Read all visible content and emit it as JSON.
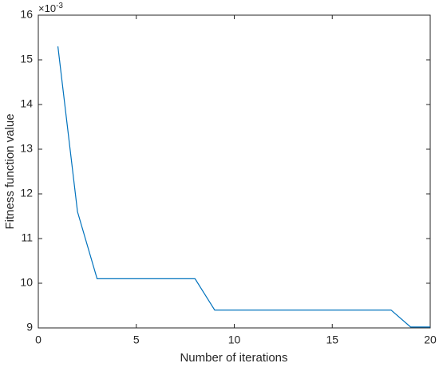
{
  "chart_data": {
    "type": "line",
    "x_label": "Number of iterations",
    "y_label": "Fitness function value",
    "y_multiplier_base": "×10",
    "y_multiplier_exp": "-3",
    "x": [
      1,
      2,
      3,
      4,
      5,
      6,
      7,
      8,
      9,
      10,
      11,
      12,
      13,
      14,
      15,
      16,
      17,
      18,
      19,
      20
    ],
    "series": [
      {
        "color": "#0072bd",
        "values": [
          15.3,
          11.6,
          10.1,
          10.1,
          10.1,
          10.1,
          10.1,
          10.1,
          9.4,
          9.4,
          9.4,
          9.4,
          9.4,
          9.4,
          9.4,
          9.4,
          9.4,
          9.4,
          9.02,
          9.02
        ]
      }
    ],
    "xlim": [
      0,
      20
    ],
    "xticks": [
      0,
      5,
      10,
      15,
      20
    ],
    "ylim": [
      9,
      16
    ],
    "yticks": [
      9,
      10,
      11,
      12,
      13,
      14,
      15,
      16
    ],
    "grid": false
  }
}
